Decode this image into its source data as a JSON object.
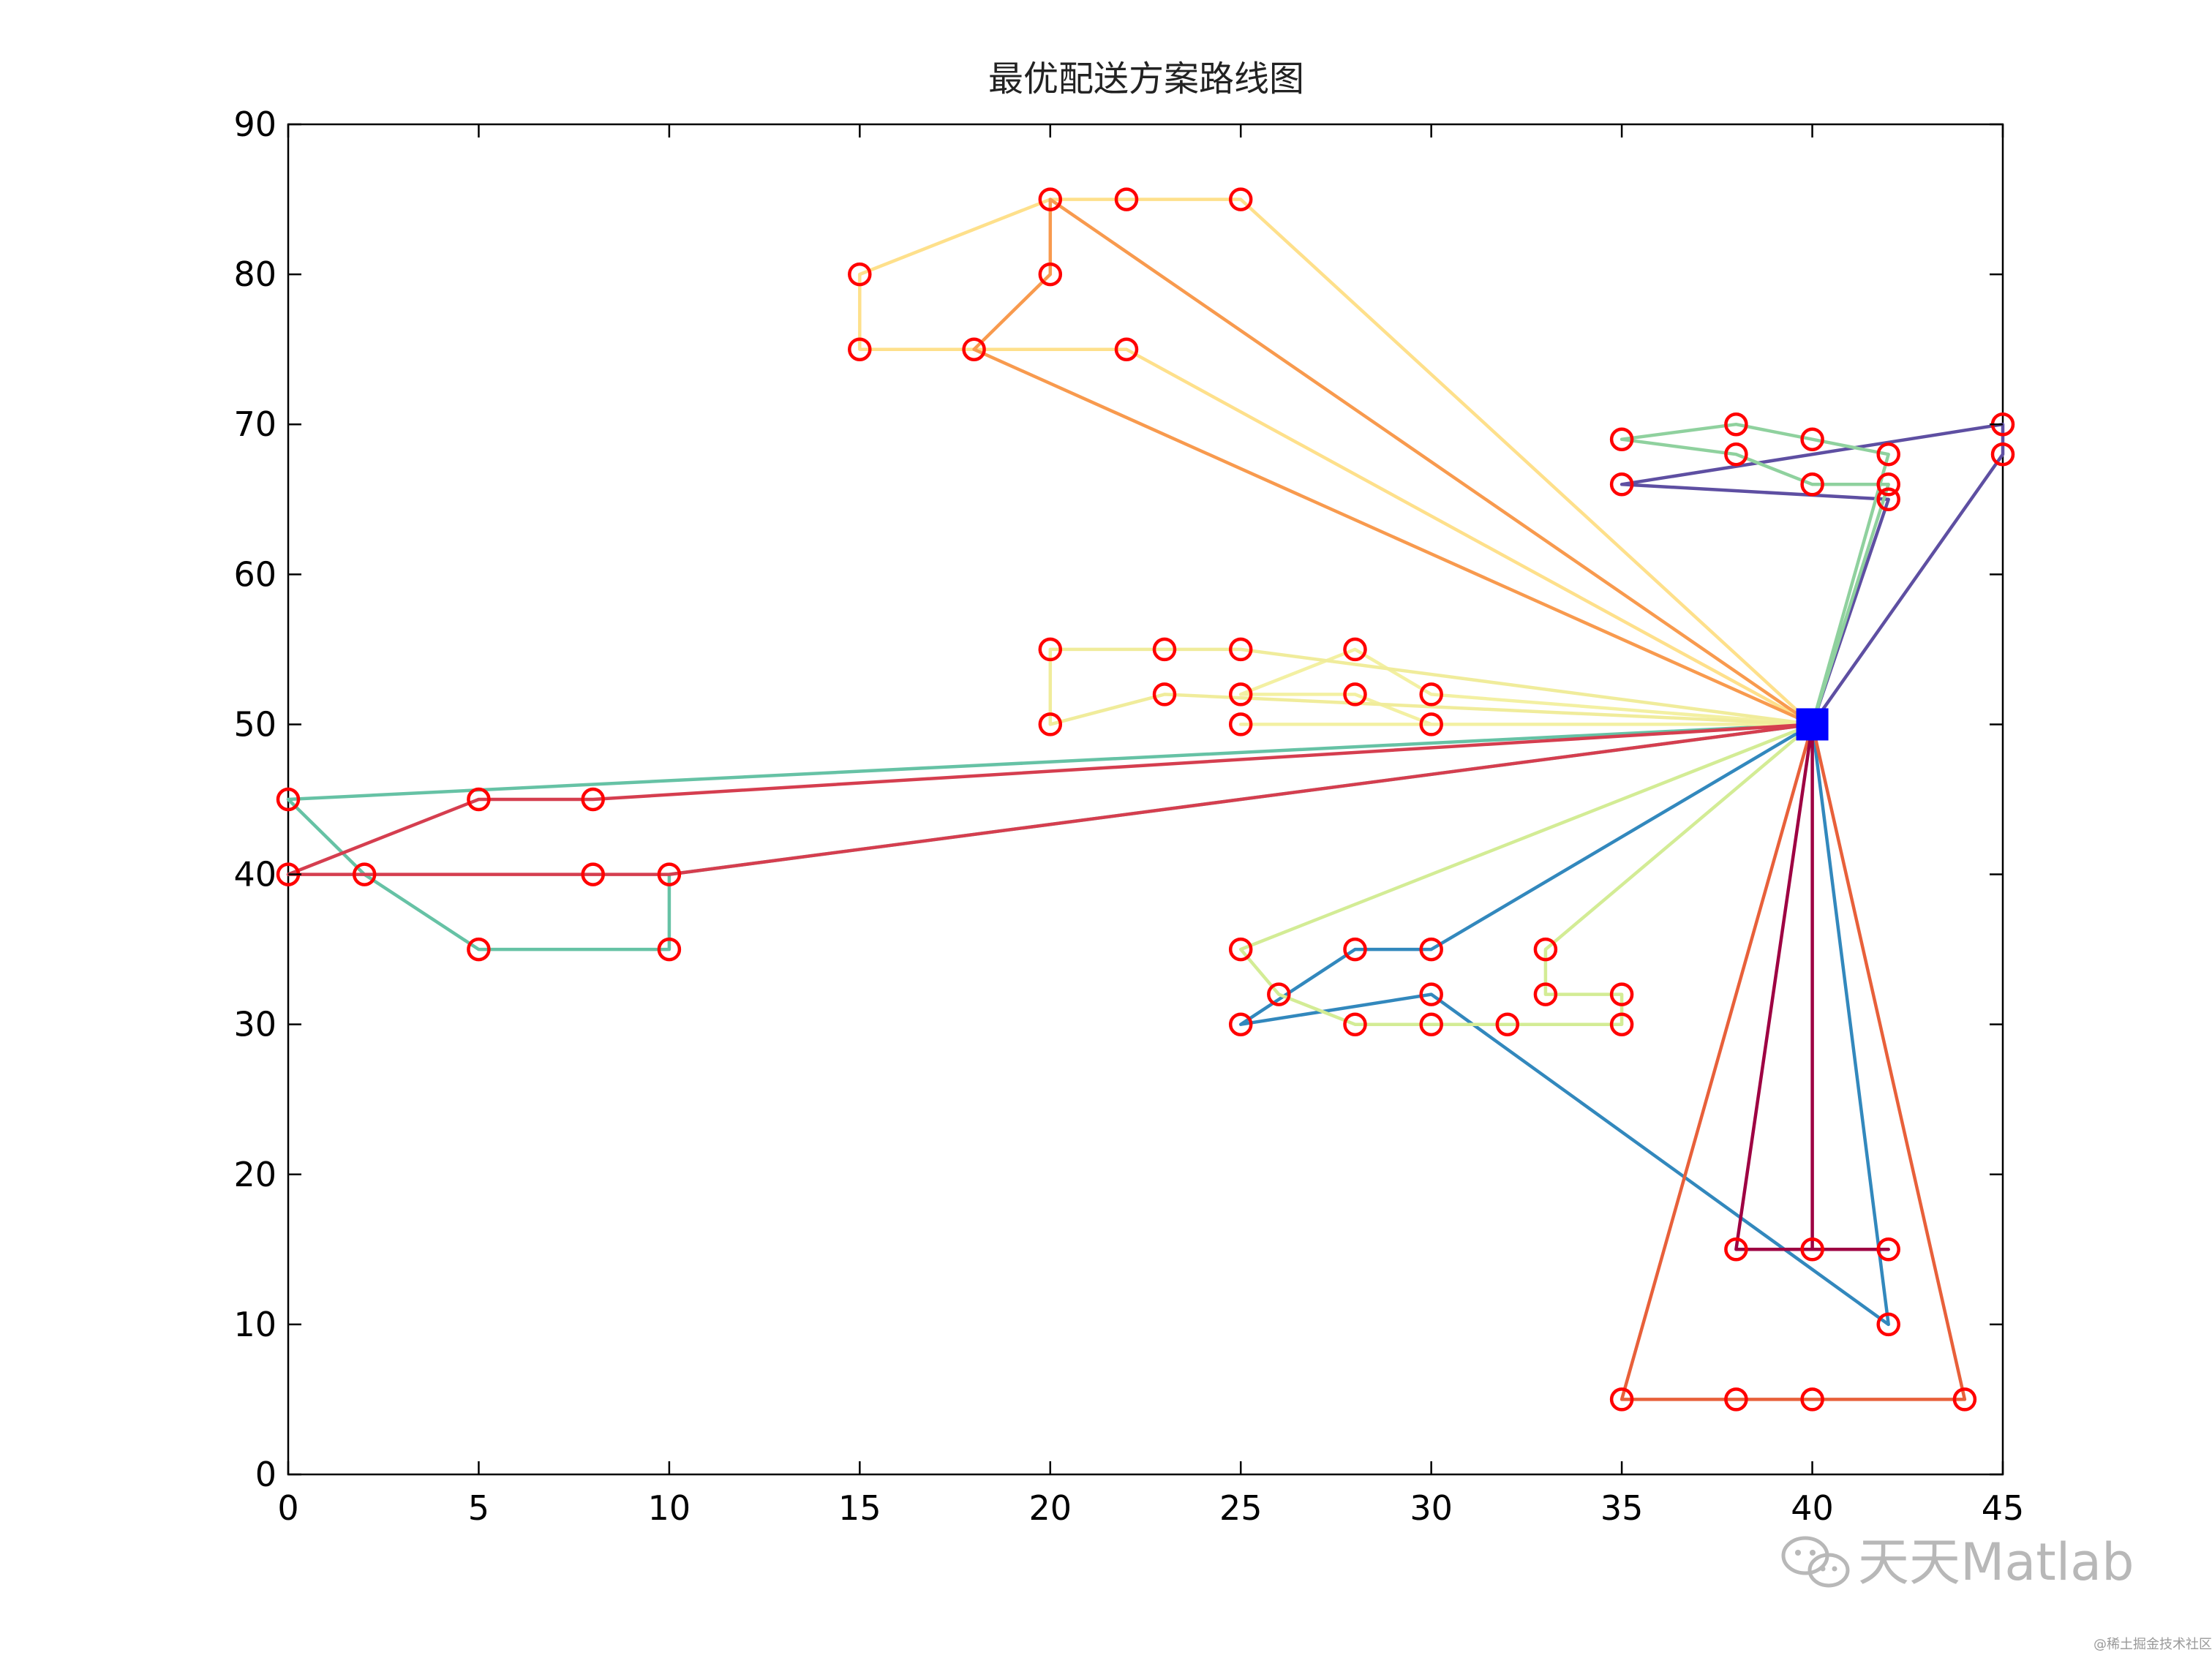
{
  "chart_data": {
    "type": "line",
    "title": "最优配送方案路线图",
    "xlabel": "",
    "ylabel": "",
    "xlim": [
      0,
      45
    ],
    "ylim": [
      0,
      90
    ],
    "xticks": [
      0,
      5,
      10,
      15,
      20,
      25,
      30,
      35,
      40,
      45
    ],
    "yticks": [
      0,
      10,
      20,
      30,
      40,
      50,
      60,
      70,
      80,
      90
    ],
    "grid": false,
    "depot": {
      "x": 40,
      "y": 50,
      "color": "#0000ff"
    },
    "customer_marker_color": "#ff0000",
    "routes": [
      {
        "color": "#5e4fa2",
        "points": [
          [
            40,
            50
          ],
          [
            45,
            68
          ],
          [
            45,
            70
          ],
          [
            35,
            66
          ],
          [
            42,
            65
          ],
          [
            40,
            50
          ]
        ]
      },
      {
        "color": "#3288bd",
        "points": [
          [
            40,
            50
          ],
          [
            42,
            10
          ],
          [
            30,
            32
          ],
          [
            25,
            30
          ],
          [
            28,
            35
          ],
          [
            30,
            35
          ],
          [
            40,
            50
          ]
        ]
      },
      {
        "color": "#66c2a5",
        "points": [
          [
            40,
            50
          ],
          [
            10,
            40
          ],
          [
            10,
            35
          ],
          [
            5,
            35
          ],
          [
            2,
            40
          ],
          [
            0,
            45
          ],
          [
            40,
            50
          ]
        ]
      },
      {
        "color": "#8fd19e",
        "points": [
          [
            40,
            50
          ],
          [
            42,
            66
          ],
          [
            40,
            66
          ],
          [
            38,
            68
          ],
          [
            35,
            69
          ],
          [
            38,
            70
          ],
          [
            40,
            69
          ],
          [
            42,
            68
          ],
          [
            40,
            50
          ]
        ]
      },
      {
        "color": "#d3ec95",
        "points": [
          [
            40,
            50
          ],
          [
            25,
            35
          ],
          [
            26,
            32
          ],
          [
            28,
            30
          ],
          [
            30,
            30
          ],
          [
            32,
            30
          ],
          [
            35,
            30
          ],
          [
            35,
            32
          ],
          [
            33,
            32
          ],
          [
            33,
            35
          ],
          [
            40,
            50
          ]
        ]
      },
      {
        "color": "#f3f0a2",
        "points": [
          [
            40,
            50
          ],
          [
            30,
            52
          ],
          [
            28,
            55
          ],
          [
            25,
            52
          ],
          [
            28,
            52
          ],
          [
            30,
            50
          ],
          [
            25,
            50
          ],
          [
            40,
            50
          ]
        ]
      },
      {
        "color": "#f0ec9b",
        "points": [
          [
            40,
            50
          ],
          [
            25,
            55
          ],
          [
            23,
            55
          ],
          [
            20,
            55
          ],
          [
            20,
            50
          ],
          [
            23,
            52
          ],
          [
            40,
            50
          ]
        ]
      },
      {
        "color": "#fee08b",
        "points": [
          [
            40,
            50
          ],
          [
            22,
            75
          ],
          [
            18,
            75
          ],
          [
            15,
            75
          ],
          [
            15,
            80
          ],
          [
            20,
            85
          ],
          [
            22,
            85
          ],
          [
            25,
            85
          ],
          [
            40,
            50
          ]
        ]
      },
      {
        "color": "#f89a4e",
        "points": [
          [
            40,
            50
          ],
          [
            20,
            85
          ],
          [
            20,
            80
          ],
          [
            18,
            75
          ],
          [
            40,
            50
          ]
        ]
      },
      {
        "color": "#e8603a",
        "points": [
          [
            40,
            50
          ],
          [
            44,
            5
          ],
          [
            40,
            5
          ],
          [
            38,
            5
          ],
          [
            35,
            5
          ],
          [
            40,
            50
          ]
        ]
      },
      {
        "color": "#d53e4f",
        "points": [
          [
            40,
            50
          ],
          [
            8,
            45
          ],
          [
            5,
            45
          ],
          [
            0,
            40
          ],
          [
            2,
            40
          ],
          [
            8,
            40
          ],
          [
            10,
            40
          ],
          [
            40,
            50
          ]
        ]
      },
      {
        "color": "#9e0142",
        "points": [
          [
            40,
            50
          ],
          [
            38,
            15
          ],
          [
            40,
            15
          ],
          [
            42,
            15
          ],
          [
            40,
            15
          ],
          [
            40,
            50
          ]
        ]
      }
    ]
  },
  "watermark": {
    "brand": "天天Matlab",
    "credit": "@稀土掘金技术社区"
  }
}
